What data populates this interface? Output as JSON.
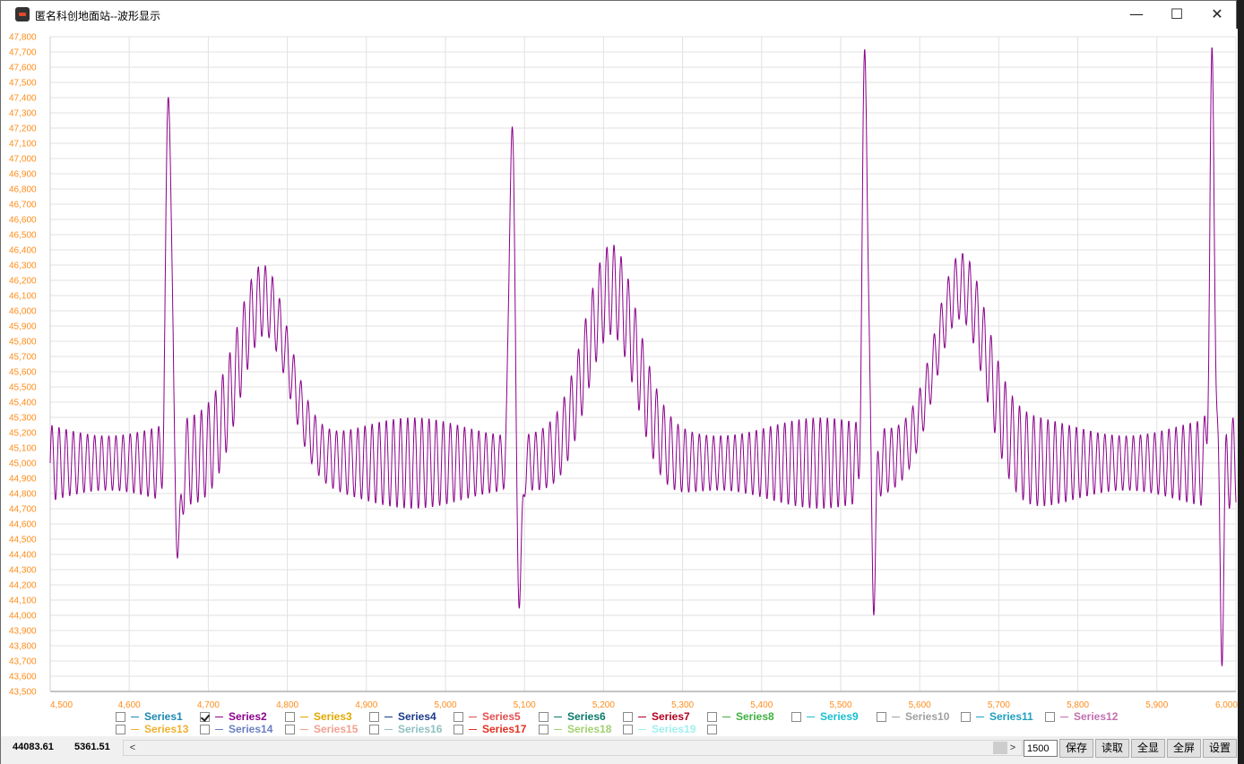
{
  "window": {
    "title": "匿名科创地面站--波形显示",
    "min_glyph": "—",
    "max_glyph": "☐",
    "close_glyph": "✕"
  },
  "chart_data": {
    "type": "line",
    "title": "",
    "xlabel": "",
    "ylabel": "",
    "xlim": [
      4500,
      6000
    ],
    "ylim": [
      43500,
      47800
    ],
    "x_ticks": [
      "4,500",
      "4,600",
      "4,700",
      "4,800",
      "4,900",
      "5,000",
      "5,100",
      "5,200",
      "5,300",
      "5,400",
      "5,500",
      "5,600",
      "5,700",
      "5,800",
      "5,900",
      "6,000"
    ],
    "y_ticks": [
      "43,500",
      "43,600",
      "43,700",
      "43,800",
      "43,900",
      "44,000",
      "44,100",
      "44,200",
      "44,300",
      "44,400",
      "44,500",
      "44,600",
      "44,700",
      "44,800",
      "44,900",
      "45,000",
      "45,100",
      "45,200",
      "45,300",
      "45,400",
      "45,500",
      "45,600",
      "45,700",
      "45,800",
      "45,900",
      "46,000",
      "46,100",
      "46,200",
      "46,300",
      "46,400",
      "46,500",
      "46,600",
      "46,700",
      "46,800",
      "46,900",
      "47,000",
      "47,100",
      "47,200",
      "47,300",
      "47,400",
      "47,500",
      "47,600",
      "47,700",
      "47,800"
    ],
    "grid": true,
    "tick_color": "#ff8c1a",
    "series": [
      {
        "name": "Series2",
        "color": "#8b008b",
        "peaks": [
          {
            "x": 4650,
            "y": 47600
          },
          {
            "x": 5084,
            "y": 47300
          },
          {
            "x": 5531,
            "y": 47750
          },
          {
            "x": 5970,
            "y": 47470
          }
        ],
        "troughs": [
          {
            "x": 4663,
            "y": 44380
          },
          {
            "x": 5094,
            "y": 44060
          },
          {
            "x": 5542,
            "y": 44220
          },
          {
            "x": 5982,
            "y": 43940
          }
        ],
        "humps": [
          {
            "x": 4770,
            "y": 46220
          },
          {
            "x": 5210,
            "y": 46290
          },
          {
            "x": 5652,
            "y": 46310
          }
        ],
        "baseline": 45000,
        "ripple_period": 9,
        "ripple_amplitude": 240
      }
    ]
  },
  "legend": [
    {
      "name": "Series1",
      "color": "#1e88b4",
      "checked": false
    },
    {
      "name": "Series2",
      "color": "#8b008b",
      "checked": true
    },
    {
      "name": "Series3",
      "color": "#e0a800",
      "checked": false
    },
    {
      "name": "Series4",
      "color": "#1a3a8a",
      "checked": false
    },
    {
      "name": "Series5",
      "color": "#e05050",
      "checked": false
    },
    {
      "name": "Series6",
      "color": "#0a7a6a",
      "checked": false
    },
    {
      "name": "Series7",
      "color": "#b00020",
      "checked": false
    },
    {
      "name": "Series8",
      "color": "#40b040",
      "checked": false
    },
    {
      "name": "Series9",
      "color": "#1ac0d0",
      "checked": false
    },
    {
      "name": "Series10",
      "color": "#a0a0a0",
      "checked": false
    },
    {
      "name": "Series11",
      "color": "#20a0c0",
      "checked": false
    },
    {
      "name": "Series12",
      "color": "#c070b0",
      "checked": false
    },
    {
      "name": "Series13",
      "color": "#f0b030",
      "checked": false
    },
    {
      "name": "Series14",
      "color": "#6a80c0",
      "checked": false
    },
    {
      "name": "Series15",
      "color": "#f0a090",
      "checked": false
    },
    {
      "name": "Series16",
      "color": "#90c0c0",
      "checked": false
    },
    {
      "name": "Series17",
      "color": "#e03020",
      "checked": false
    },
    {
      "name": "Series18",
      "color": "#a0d070",
      "checked": false
    },
    {
      "name": "Series19",
      "color": "#a0f0f0",
      "checked": false
    },
    {
      "name": "",
      "color": "#ffffff",
      "checked": false
    }
  ],
  "status": {
    "readout_x": "44083.61",
    "readout_y": "5361.51",
    "count_value": "1500",
    "buttons": [
      "保存",
      "读取",
      "全显",
      "全屏",
      "设置"
    ],
    "scroll_left": "<",
    "scroll_right": ">"
  }
}
